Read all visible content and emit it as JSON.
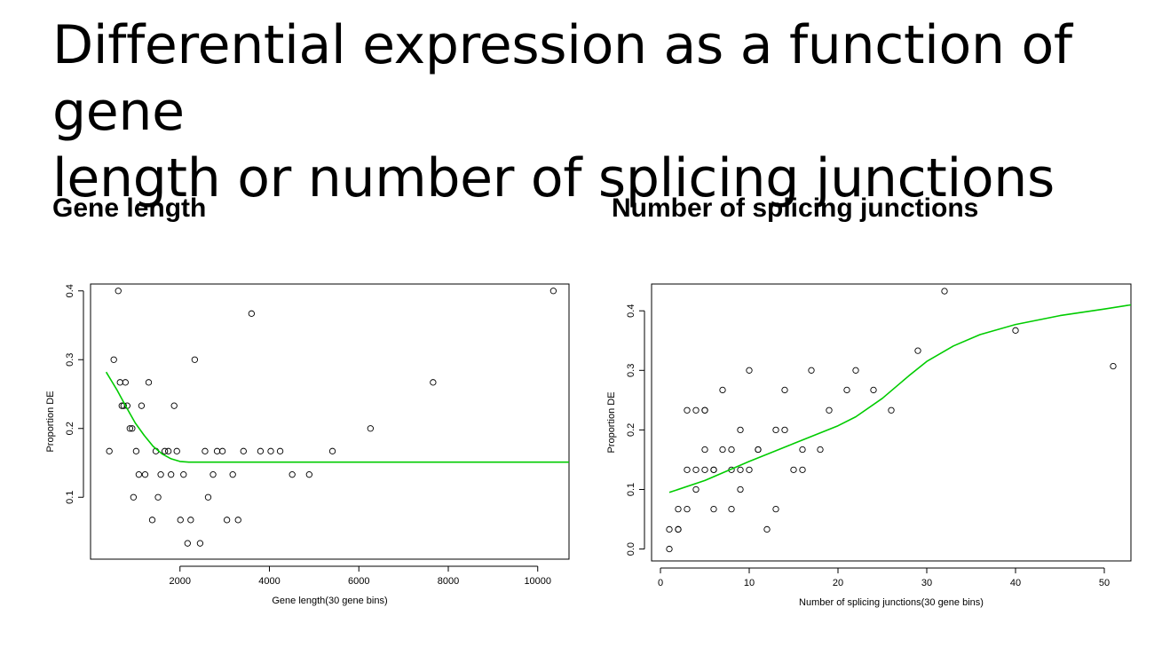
{
  "slide": {
    "title_lines": [
      "Differential expression as a function of gene",
      "length or number of splicing junctions"
    ],
    "heading_left": "Gene length",
    "heading_right": "Number of splicing junctions"
  },
  "chart_data": [
    {
      "type": "scatter",
      "xlabel": "Gene length(30 gene bins)",
      "ylabel": "Proportion DE",
      "xlim": [
        0,
        10700
      ],
      "ylim": [
        0.01,
        0.41
      ],
      "xticks": [
        2000,
        4000,
        6000,
        8000,
        10000
      ],
      "yticks": [
        0.1,
        0.2,
        0.3,
        0.4
      ],
      "grid": false,
      "points": [
        [
          420,
          0.167
        ],
        [
          520,
          0.3
        ],
        [
          620,
          0.4
        ],
        [
          660,
          0.267
        ],
        [
          700,
          0.233
        ],
        [
          740,
          0.233
        ],
        [
          780,
          0.267
        ],
        [
          820,
          0.233
        ],
        [
          880,
          0.2
        ],
        [
          930,
          0.2
        ],
        [
          960,
          0.1
        ],
        [
          1020,
          0.167
        ],
        [
          1080,
          0.133
        ],
        [
          1140,
          0.233
        ],
        [
          1220,
          0.133
        ],
        [
          1300,
          0.267
        ],
        [
          1380,
          0.067
        ],
        [
          1460,
          0.167
        ],
        [
          1510,
          0.1
        ],
        [
          1570,
          0.133
        ],
        [
          1660,
          0.167
        ],
        [
          1740,
          0.167
        ],
        [
          1800,
          0.133
        ],
        [
          1870,
          0.233
        ],
        [
          1930,
          0.167
        ],
        [
          2010,
          0.067
        ],
        [
          2080,
          0.133
        ],
        [
          2170,
          0.033
        ],
        [
          2240,
          0.067
        ],
        [
          2330,
          0.3
        ],
        [
          2450,
          0.033
        ],
        [
          2560,
          0.167
        ],
        [
          2630,
          0.1
        ],
        [
          2740,
          0.133
        ],
        [
          2830,
          0.167
        ],
        [
          2950,
          0.167
        ],
        [
          3050,
          0.067
        ],
        [
          3180,
          0.133
        ],
        [
          3300,
          0.067
        ],
        [
          3420,
          0.167
        ],
        [
          3600,
          0.367
        ],
        [
          3800,
          0.167
        ],
        [
          4030,
          0.167
        ],
        [
          4240,
          0.167
        ],
        [
          4510,
          0.133
        ],
        [
          4890,
          0.133
        ],
        [
          5410,
          0.167
        ],
        [
          6260,
          0.2
        ],
        [
          7660,
          0.267
        ],
        [
          10350,
          0.4
        ]
      ],
      "fit_line": {
        "x": [
          350,
          600,
          800,
          1000,
          1200,
          1400,
          1600,
          1800,
          2000,
          2200,
          2500,
          3000,
          4000,
          6000,
          8000,
          10700
        ],
        "y": [
          0.282,
          0.255,
          0.231,
          0.208,
          0.19,
          0.174,
          0.163,
          0.156,
          0.152,
          0.151,
          0.151,
          0.151,
          0.151,
          0.151,
          0.151,
          0.151
        ]
      },
      "colors": {
        "points": "#000000",
        "fit": "#00cc00"
      }
    },
    {
      "type": "scatter",
      "xlabel": "Number of splicing junctions(30 gene bins)",
      "ylabel": "Proportion DE",
      "xlim": [
        -1,
        53
      ],
      "ylim": [
        -0.02,
        0.445
      ],
      "xticks": [
        0,
        10,
        20,
        30,
        40,
        50
      ],
      "yticks": [
        0.0,
        0.1,
        0.2,
        0.3,
        0.4
      ],
      "grid": false,
      "points": [
        [
          1,
          0.0
        ],
        [
          1,
          0.033
        ],
        [
          2,
          0.033
        ],
        [
          2,
          0.033
        ],
        [
          2,
          0.067
        ],
        [
          3,
          0.067
        ],
        [
          3,
          0.133
        ],
        [
          3,
          0.233
        ],
        [
          4,
          0.1
        ],
        [
          4,
          0.133
        ],
        [
          4,
          0.233
        ],
        [
          5,
          0.133
        ],
        [
          5,
          0.167
        ],
        [
          5,
          0.233
        ],
        [
          5,
          0.233
        ],
        [
          6,
          0.067
        ],
        [
          6,
          0.133
        ],
        [
          6,
          0.133
        ],
        [
          7,
          0.167
        ],
        [
          7,
          0.267
        ],
        [
          8,
          0.067
        ],
        [
          8,
          0.133
        ],
        [
          8,
          0.167
        ],
        [
          9,
          0.1
        ],
        [
          9,
          0.133
        ],
        [
          9,
          0.2
        ],
        [
          10,
          0.133
        ],
        [
          10,
          0.3
        ],
        [
          11,
          0.167
        ],
        [
          11,
          0.167
        ],
        [
          12,
          0.033
        ],
        [
          13,
          0.067
        ],
        [
          13,
          0.2
        ],
        [
          14,
          0.2
        ],
        [
          14,
          0.267
        ],
        [
          15,
          0.133
        ],
        [
          16,
          0.133
        ],
        [
          16,
          0.167
        ],
        [
          17,
          0.3
        ],
        [
          18,
          0.167
        ],
        [
          19,
          0.233
        ],
        [
          21,
          0.267
        ],
        [
          22,
          0.3
        ],
        [
          24,
          0.267
        ],
        [
          26,
          0.233
        ],
        [
          29,
          0.333
        ],
        [
          32,
          0.433
        ],
        [
          40,
          0.367
        ],
        [
          51,
          0.307
        ]
      ],
      "fit_line": {
        "x": [
          1,
          5,
          10,
          15,
          20,
          22,
          25,
          28,
          30,
          33,
          36,
          40,
          45,
          50,
          53
        ],
        "y": [
          0.095,
          0.115,
          0.147,
          0.177,
          0.207,
          0.222,
          0.253,
          0.291,
          0.315,
          0.341,
          0.36,
          0.377,
          0.392,
          0.403,
          0.41
        ]
      },
      "colors": {
        "points": "#000000",
        "fit": "#00cc00"
      }
    }
  ]
}
